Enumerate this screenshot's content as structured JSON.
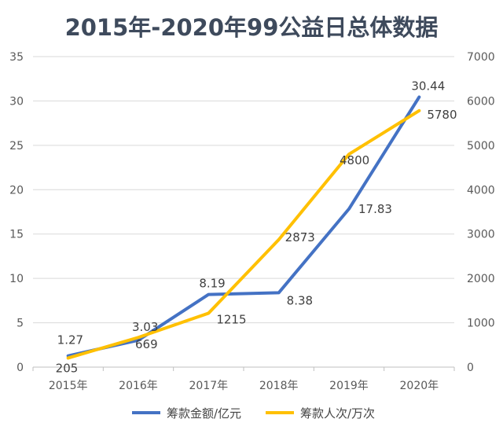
{
  "chart_data": {
    "type": "line",
    "title": "2015年-2020年99公益日总体数据",
    "categories": [
      "2015年",
      "2016年",
      "2017年",
      "2018年",
      "2019年",
      "2020年"
    ],
    "y_left": {
      "ylim": [
        0,
        35
      ],
      "ticks": [
        "0",
        "5",
        "10",
        "15",
        "20",
        "25",
        "30",
        "35"
      ]
    },
    "y_right": {
      "ylim": [
        0,
        7000
      ],
      "ticks": [
        "0",
        "1000",
        "2000",
        "3000",
        "4000",
        "5000",
        "6000",
        "7000"
      ]
    },
    "series": [
      {
        "name": "筹款金额/亿元",
        "axis": "left",
        "color": "#4472C4",
        "values": [
          1.27,
          3.03,
          8.19,
          8.38,
          17.83,
          30.44
        ],
        "labels": [
          "1.27",
          "3.03",
          "8.19",
          "8.38",
          "17.83",
          "30.44"
        ]
      },
      {
        "name": "筹款人次/万次",
        "axis": "right",
        "color": "#FFC000",
        "values": [
          205,
          669,
          1215,
          2873,
          4800,
          5780
        ],
        "labels": [
          "205",
          "669",
          "1215",
          "2873",
          "4800",
          "5780"
        ]
      }
    ],
    "grid": true,
    "legend": "bottom-center"
  }
}
